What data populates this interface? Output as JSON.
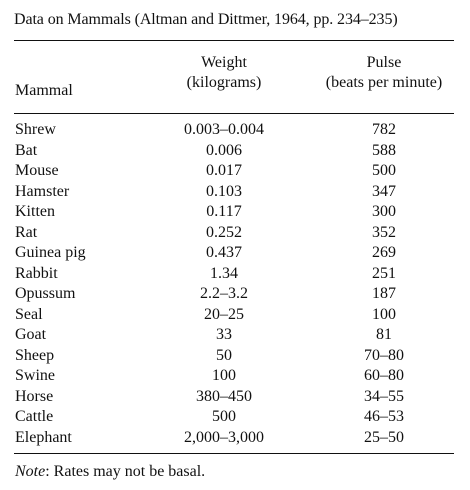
{
  "table": {
    "title": "Data on Mammals (Altman and Dittmer, 1964, pp. 234–235)",
    "headers": {
      "mammal": "Mammal",
      "weight_line1": "Weight",
      "weight_line2": "(kilograms)",
      "pulse_line1": "Pulse",
      "pulse_line2": "(beats per minute)"
    },
    "rows": [
      {
        "mammal": "Shrew",
        "weight": "0.003–0.004",
        "pulse": "782"
      },
      {
        "mammal": "Bat",
        "weight": "0.006",
        "pulse": "588"
      },
      {
        "mammal": "Mouse",
        "weight": "0.017",
        "pulse": "500"
      },
      {
        "mammal": "Hamster",
        "weight": "0.103",
        "pulse": "347"
      },
      {
        "mammal": "Kitten",
        "weight": "0.117",
        "pulse": "300"
      },
      {
        "mammal": "Rat",
        "weight": "0.252",
        "pulse": "352"
      },
      {
        "mammal": "Guinea pig",
        "weight": "0.437",
        "pulse": "269"
      },
      {
        "mammal": "Rabbit",
        "weight": "1.34",
        "pulse": "251"
      },
      {
        "mammal": "Opussum",
        "weight": "2.2–3.2",
        "pulse": "187"
      },
      {
        "mammal": "Seal",
        "weight": "20–25",
        "pulse": "100"
      },
      {
        "mammal": "Goat",
        "weight": "33",
        "pulse": "81"
      },
      {
        "mammal": "Sheep",
        "weight": "50",
        "pulse": "70–80"
      },
      {
        "mammal": "Swine",
        "weight": "100",
        "pulse": "60–80"
      },
      {
        "mammal": "Horse",
        "weight": "380–450",
        "pulse": "34–55"
      },
      {
        "mammal": "Cattle",
        "weight": "500",
        "pulse": "46–53"
      },
      {
        "mammal": "Elephant",
        "weight": "2,000–3,000",
        "pulse": "25–50"
      }
    ],
    "note": {
      "label": "Note",
      "text": ": Rates may not be basal."
    }
  }
}
